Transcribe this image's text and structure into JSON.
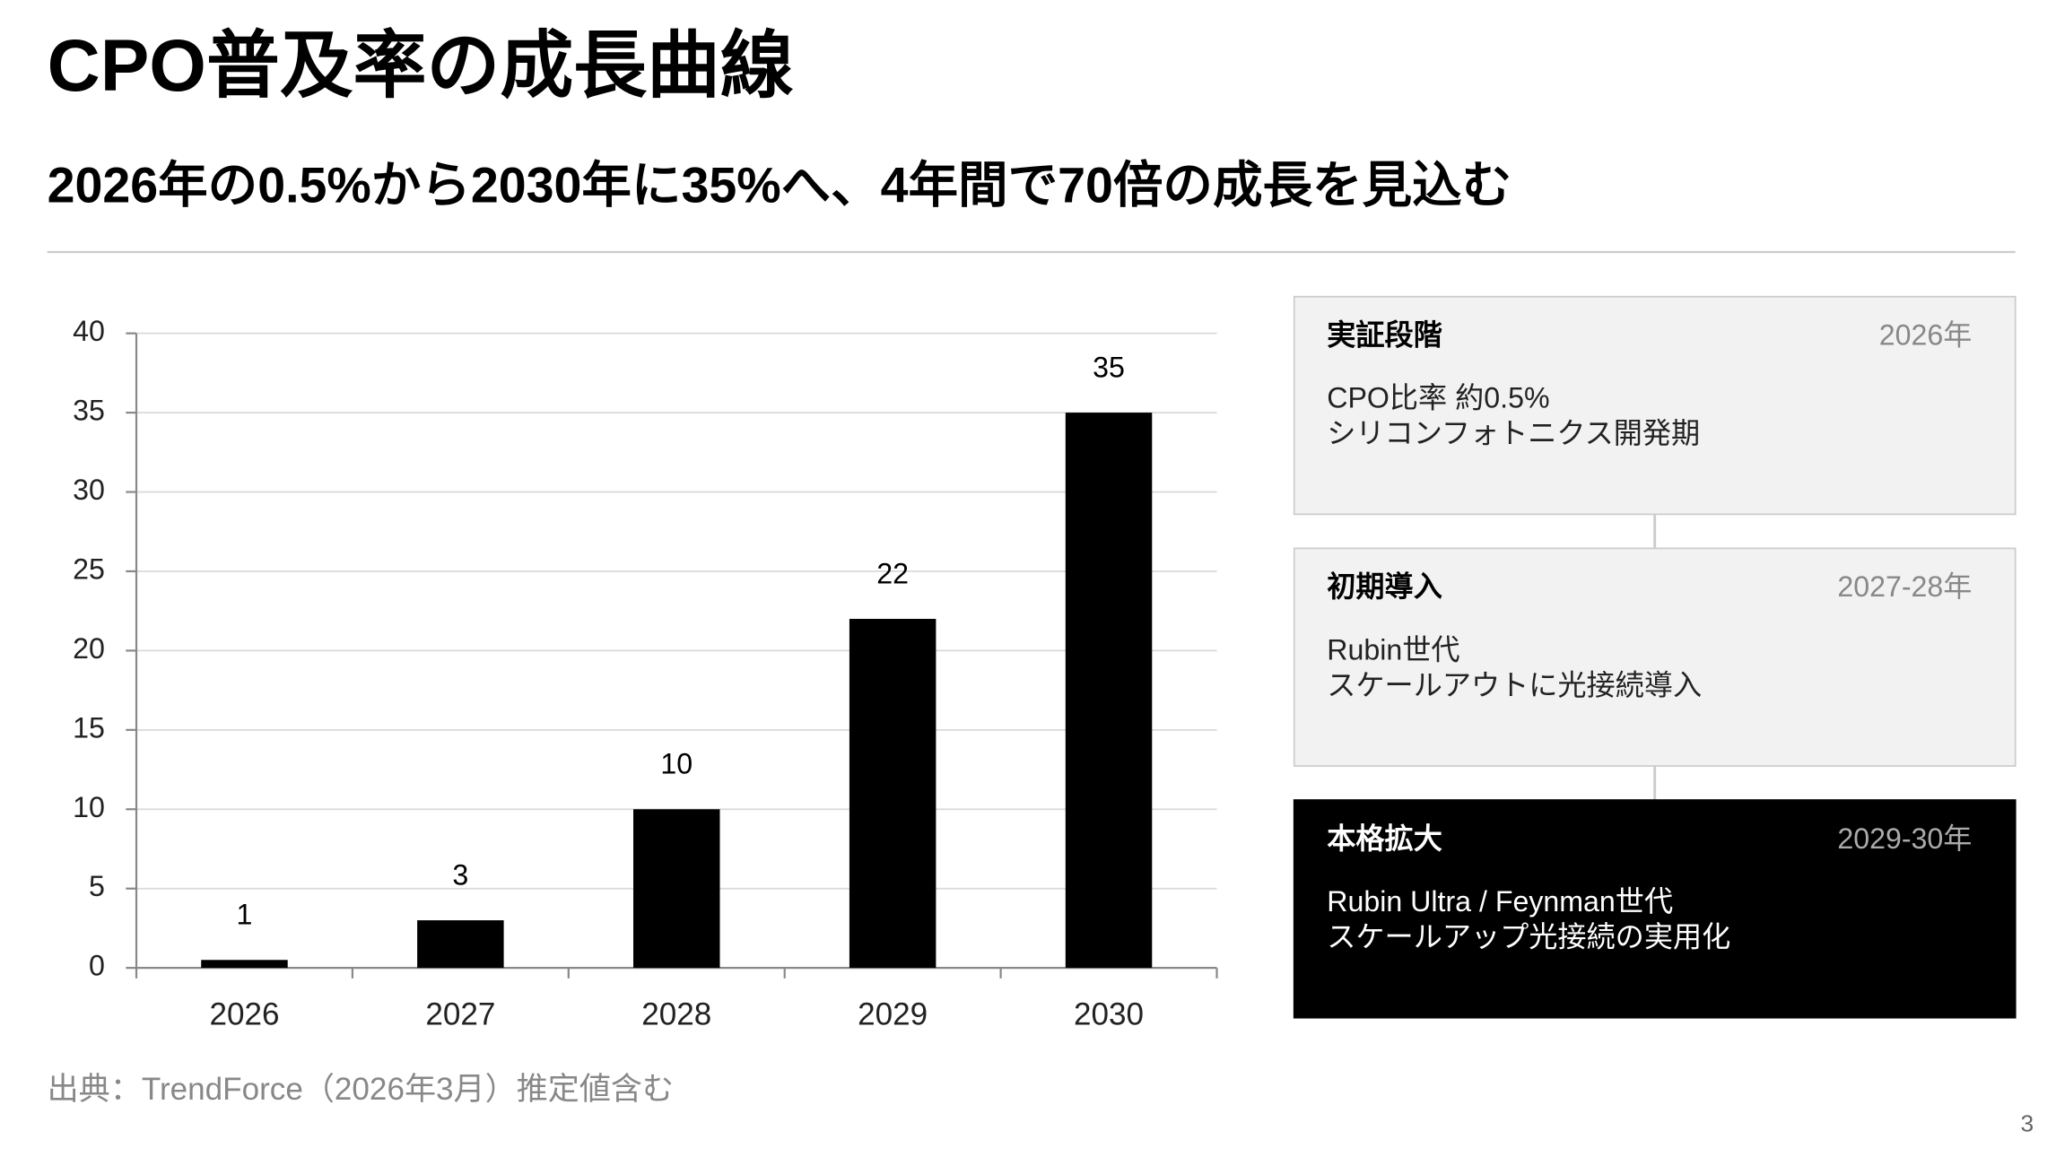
{
  "slide": {
    "title": "CPO普及率の成長曲線",
    "subtitle": "2026年の0.5%から2030年に35%へ、4年間で70倍の成長を見込む"
  },
  "chart_data": {
    "type": "bar",
    "categories": [
      "2026",
      "2027",
      "2028",
      "2029",
      "2030"
    ],
    "values": [
      0.5,
      3,
      10,
      22,
      35
    ],
    "value_labels": [
      "1",
      "3",
      "10",
      "22",
      "35"
    ],
    "color": "#000000",
    "ylim": [
      0,
      40
    ],
    "yticks": [
      0,
      5,
      10,
      15,
      20,
      25,
      30,
      35,
      40
    ],
    "grid": true
  },
  "stages": [
    {
      "title": "実証段階",
      "period": "2026年",
      "lines": [
        "CPO比率 約0.5%",
        "シリコンフォトニクス開発期"
      ]
    },
    {
      "title": "初期導入",
      "period": "2027-28年",
      "lines": [
        "Rubin世代",
        "スケールアウトに光接続導入"
      ]
    },
    {
      "title": "本格拡大",
      "period": "2029-30年",
      "lines": [
        "Rubin Ultra / Feynman世代",
        "スケールアップ光接続の実用化"
      ]
    }
  ],
  "source": "出典：TrendForce（2026年3月）推定値含む",
  "page_number": 3
}
